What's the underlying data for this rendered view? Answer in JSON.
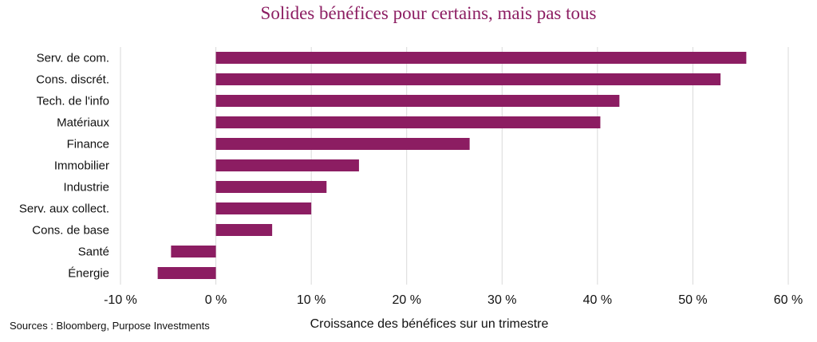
{
  "colors": {
    "bar": "#8c1d62",
    "title": "#8c1d62",
    "grid": "#d9d9d9"
  },
  "chart_data": {
    "type": "bar",
    "orientation": "horizontal",
    "title": "Solides bénéfices pour certains, mais pas tous",
    "xlabel": "Croissance des bénéfices sur un trimestre",
    "ylabel": "",
    "categories": [
      "Serv. de com.",
      "Cons. discrét.",
      "Tech. de l'info",
      "Matériaux",
      "Finance",
      "Immobilier",
      "Industrie",
      "Serv. aux collect.",
      "Cons. de base",
      "Santé",
      "Énergie"
    ],
    "values": [
      55.6,
      52.9,
      42.3,
      40.3,
      26.6,
      15.0,
      11.6,
      10.0,
      5.9,
      -4.7,
      -6.1
    ],
    "xlim": [
      -10,
      60
    ],
    "xticks": [
      -10,
      0,
      10,
      20,
      30,
      40,
      50,
      60
    ],
    "xtick_labels": [
      "-10 %",
      "0 %",
      "10 %",
      "20 %",
      "30 %",
      "40 %",
      "50 %",
      "60 %"
    ],
    "grid": "vertical",
    "legend": "none"
  },
  "source": "Sources : Bloomberg, Purpose Investments"
}
